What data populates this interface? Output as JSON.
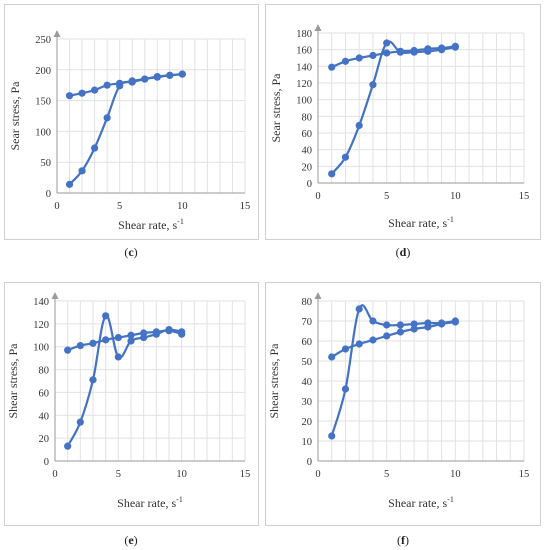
{
  "chart_data": [
    {
      "type": "line",
      "panel_label": "c",
      "xlabel": "Shear rate, s",
      "xlabel_sup": "-1",
      "ylabel": "Sear stress, Pa",
      "xlim": [
        0,
        15
      ],
      "ylim": [
        0,
        250
      ],
      "xticks": [
        0,
        5,
        10,
        15
      ],
      "yticks": [
        0,
        50,
        100,
        150,
        200,
        250
      ],
      "grid": true,
      "legend": "none",
      "color": "#4472C4",
      "series": [
        {
          "x": [
            1,
            2,
            3,
            4,
            5,
            6,
            7,
            8,
            9,
            10
          ],
          "y": [
            14,
            36,
            73,
            122,
            174,
            180,
            185,
            188,
            191,
            193
          ]
        },
        {
          "x": [
            1,
            2,
            3,
            4,
            5,
            6,
            7,
            8,
            9,
            10
          ],
          "y": [
            158,
            162,
            167,
            175,
            178,
            182,
            185,
            189,
            191,
            193
          ]
        }
      ]
    },
    {
      "type": "line",
      "panel_label": "d",
      "xlabel": "Shear rate, s",
      "xlabel_sup": "-1",
      "ylabel": "Sear stress, Pa",
      "xlim": [
        0,
        15
      ],
      "ylim": [
        0,
        180
      ],
      "xticks": [
        0,
        5,
        10,
        15
      ],
      "yticks": [
        0,
        20,
        40,
        60,
        80,
        100,
        120,
        140,
        160,
        180
      ],
      "grid": true,
      "legend": "none",
      "color": "#4472C4",
      "series": [
        {
          "x": [
            1,
            2,
            3,
            4,
            5,
            6,
            7,
            8,
            9,
            10
          ],
          "y": [
            11,
            31,
            69,
            118,
            168,
            157,
            157,
            158,
            160,
            163
          ]
        },
        {
          "x": [
            1,
            2,
            3,
            4,
            5,
            6,
            7,
            8,
            9,
            10
          ],
          "y": [
            139,
            146,
            150,
            153,
            156,
            158,
            159,
            161,
            162,
            164
          ]
        }
      ]
    },
    {
      "type": "line",
      "panel_label": "e",
      "xlabel": "Shear rate, s",
      "xlabel_sup": "-1",
      "ylabel": "Shear stress, Pa",
      "xlim": [
        0,
        15
      ],
      "ylim": [
        0,
        140
      ],
      "xticks": [
        0,
        5,
        10,
        15
      ],
      "yticks": [
        0,
        20,
        40,
        60,
        80,
        100,
        120,
        140
      ],
      "grid": true,
      "legend": "none",
      "color": "#4472C4",
      "series": [
        {
          "x": [
            1,
            2,
            3,
            4,
            5,
            6,
            7,
            8,
            9,
            10
          ],
          "y": [
            13,
            34,
            71,
            127,
            91,
            105,
            108,
            111,
            115,
            113
          ]
        },
        {
          "x": [
            1,
            2,
            3,
            4,
            5,
            6,
            7,
            8,
            9,
            10
          ],
          "y": [
            97,
            101,
            103,
            106,
            108,
            110,
            112,
            113,
            114,
            111
          ]
        }
      ]
    },
    {
      "type": "line",
      "panel_label": "f",
      "xlabel": "Shear rate, s",
      "xlabel_sup": "-1",
      "ylabel": "Shear stress, Pa",
      "xlim": [
        0,
        15
      ],
      "ylim": [
        0,
        80
      ],
      "xticks": [
        0,
        5,
        10,
        15
      ],
      "yticks": [
        0,
        10,
        20,
        30,
        40,
        50,
        60,
        70,
        80
      ],
      "grid": true,
      "legend": "none",
      "color": "#4472C4",
      "series": [
        {
          "x": [
            1,
            2,
            3,
            4,
            5,
            6,
            7,
            8,
            9,
            10
          ],
          "y": [
            12.5,
            36,
            76,
            70,
            68,
            68,
            68.5,
            69,
            69,
            70
          ]
        },
        {
          "x": [
            1,
            2,
            3,
            4,
            5,
            6,
            7,
            8,
            9,
            10
          ],
          "y": [
            52,
            56,
            58.5,
            60.5,
            62.5,
            64.5,
            66,
            67,
            68.5,
            69.5
          ]
        }
      ]
    }
  ],
  "captions": [
    "c",
    "d",
    "e",
    "f"
  ]
}
